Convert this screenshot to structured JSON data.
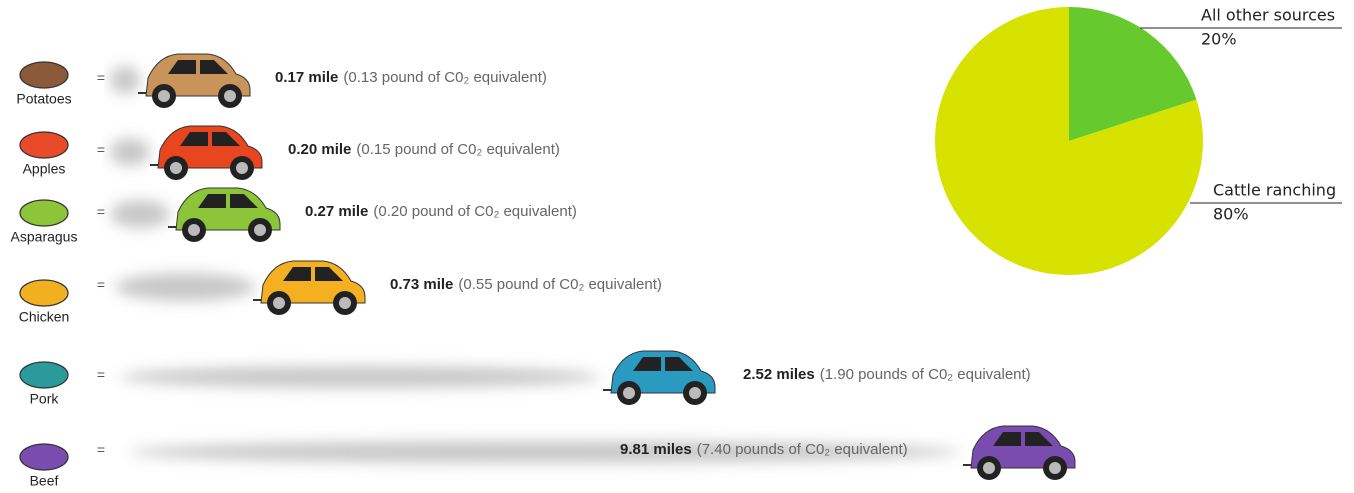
{
  "rows": [
    {
      "food": "Potatoes",
      "distance": "0.17 mile",
      "equivalent": "(0.13 pound of C0₂ equivalent)"
    },
    {
      "food": "Apples",
      "distance": "0.20 mile",
      "equivalent": "(0.15 pound of C0₂ equivalent)"
    },
    {
      "food": "Asparagus",
      "distance": "0.27 mile",
      "equivalent": "(0.20 pound of C0₂ equivalent)"
    },
    {
      "food": "Chicken",
      "distance": "0.73 mile",
      "equivalent": "(0.55 pound of C0₂ equivalent)"
    },
    {
      "food": "Pork",
      "distance": "2.52 miles",
      "equivalent": "(1.90 pounds of C0₂ equivalent)"
    },
    {
      "food": "Beef",
      "distance": "9.81 miles",
      "equivalent": "(7.40 pounds of C0₂ equivalent)"
    }
  ],
  "chart_data": {
    "type": "pie",
    "categories": [
      "All other sources",
      "Cattle ranching"
    ],
    "values": [
      20,
      80
    ],
    "value_labels": [
      "20%",
      "80%"
    ],
    "colors": [
      "#66c92e",
      "#d8e200"
    ]
  }
}
